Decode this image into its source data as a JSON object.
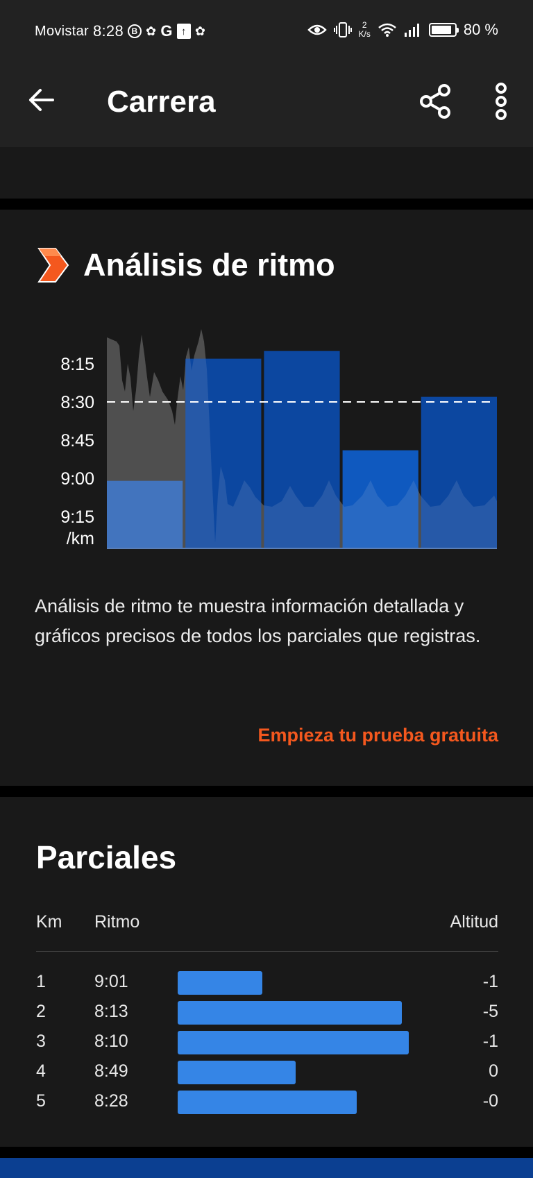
{
  "status_bar": {
    "carrier": "Movistar",
    "time": "8:28",
    "speed_value": "2",
    "speed_unit": "K/s",
    "battery": "80 %"
  },
  "app_bar": {
    "title": "Carrera",
    "back_icon": "arrow-left-icon",
    "share_icon": "share-icon",
    "more_icon": "more-vertical-icon"
  },
  "pace_analysis": {
    "title": "Análisis de ritmo",
    "logo_icon": "orange-chevron-icon",
    "description": "Análisis de ritmo te muestra información detallada y gráficos precisos de todos los parciales que registras.",
    "cta": "Empieza tu prueba gratuita"
  },
  "chart_data": {
    "type": "bar",
    "y_ticks": [
      "8:15",
      "8:30",
      "8:45",
      "9:00",
      "9:15"
    ],
    "y_unit": "/km",
    "y_reversed": true,
    "average_line": "8:30",
    "categories": [
      "1",
      "2",
      "3",
      "4",
      "5"
    ],
    "values_seconds_per_km": [
      541,
      493,
      490,
      529,
      508
    ],
    "colors": {
      "bar_slow": "#2f6fcf",
      "bar": "#0a4db3",
      "bar_mid": "#0e62d6",
      "area": "#c8c8c8"
    }
  },
  "splits": {
    "title": "Parciales",
    "headers": {
      "km": "Km",
      "pace": "Ritmo",
      "altitude": "Altitud"
    },
    "rows": [
      {
        "km": "1",
        "pace": "9:01",
        "altitude": "-1",
        "relative": 0.36
      },
      {
        "km": "2",
        "pace": "8:13",
        "altitude": "-5",
        "relative": 0.95
      },
      {
        "km": "3",
        "pace": "8:10",
        "altitude": "-1",
        "relative": 0.98
      },
      {
        "km": "4",
        "pace": "8:49",
        "altitude": "0",
        "relative": 0.5
      },
      {
        "km": "5",
        "pace": "8:28",
        "altitude": "-0",
        "relative": 0.76
      }
    ],
    "bar_color": "#3585e6"
  }
}
